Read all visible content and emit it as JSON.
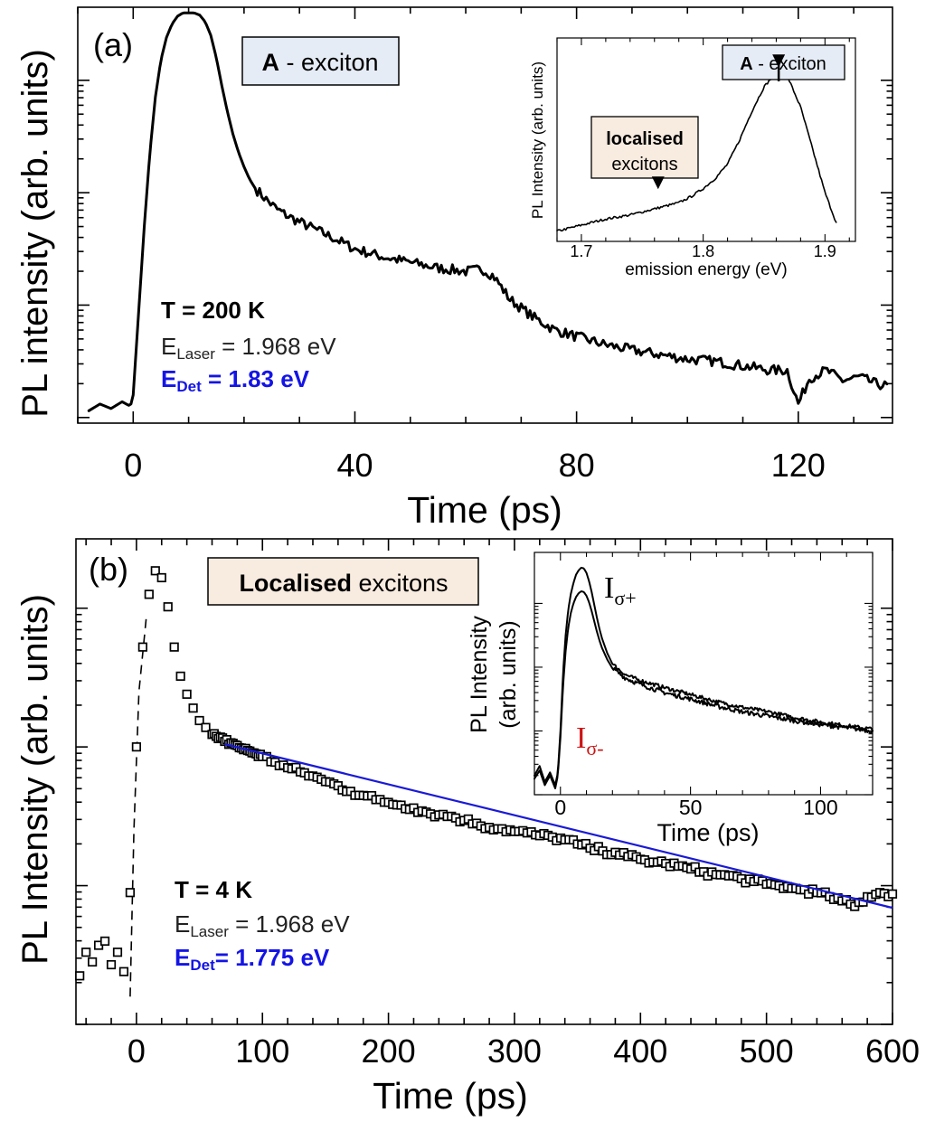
{
  "chart_data": [
    {
      "id": "a",
      "type": "line",
      "panel_label": "(a)",
      "xlabel": "Time (ps)",
      "ylabel": "PL intensity (arb. units)",
      "xlim": [
        -10,
        137
      ],
      "yscale": "log",
      "ylim_decades": [
        0,
        3.6
      ],
      "xticks": [
        0,
        40,
        80,
        120
      ],
      "xtick_labels": [
        "0",
        "40",
        "80",
        "120"
      ],
      "legend_box": {
        "bold": "A",
        "rest": " - exciton",
        "fill": "#e6ecf5"
      },
      "annotations": {
        "temperature": "T = 200 K",
        "laser_prefix": "E",
        "laser_sub": "Laser",
        "laser_value": " = 1.968 eV",
        "det_prefix": "E",
        "det_sub": "Det",
        "det_value": " = 1.83 eV",
        "det_color": "#1414e6"
      },
      "series": [
        {
          "name": "A-exciton PL",
          "color": "#000000",
          "x": [
            -8,
            -6,
            -4,
            -2,
            -0.5,
            0,
            1,
            2,
            3,
            4,
            5,
            6,
            7,
            8,
            9,
            10,
            11,
            12,
            13,
            14,
            15,
            16,
            17,
            18,
            19,
            20,
            21,
            22,
            24,
            26,
            28,
            30,
            33,
            36,
            40,
            45,
            50,
            55,
            60,
            63,
            65,
            68,
            72,
            76,
            80,
            85,
            90,
            95,
            100,
            105,
            110,
            115,
            118,
            120,
            122,
            125,
            128,
            131,
            134,
            136
          ],
          "y": [
            0.06,
            0.12,
            0.08,
            0.14,
            0.1,
            0.2,
            0.95,
            1.7,
            2.35,
            2.85,
            3.18,
            3.38,
            3.5,
            3.57,
            3.6,
            3.6,
            3.6,
            3.58,
            3.52,
            3.4,
            3.2,
            2.95,
            2.72,
            2.52,
            2.36,
            2.23,
            2.12,
            2.04,
            1.94,
            1.85,
            1.79,
            1.74,
            1.67,
            1.6,
            1.5,
            1.43,
            1.38,
            1.33,
            1.3,
            1.32,
            1.26,
            1.05,
            0.9,
            0.78,
            0.72,
            0.65,
            0.6,
            0.56,
            0.52,
            0.5,
            0.46,
            0.42,
            0.42,
            0.12,
            0.35,
            0.42,
            0.33,
            0.36,
            0.3,
            0.28
          ]
        }
      ]
    },
    {
      "id": "a-inset",
      "type": "line",
      "xlabel": "emission energy (eV)",
      "ylabel": "PL Intensity (arb. units)",
      "xlim": [
        1.68,
        1.925
      ],
      "ylim": [
        0,
        1
      ],
      "xticks": [
        1.7,
        1.8,
        1.9
      ],
      "xtick_labels": [
        "1.7",
        "1.8",
        "1.9"
      ],
      "labels": {
        "a_bold": "A",
        "a_rest": " - exciton",
        "a_fill": "#e6ecf5",
        "loc_bold": "localised",
        "loc_rest": "excitons",
        "loc_fill": "#f8ebdf"
      },
      "arrows": [
        {
          "x": 1.862,
          "y": 0.83
        },
        {
          "x": 1.763,
          "y": 0.23
        }
      ],
      "series": [
        {
          "name": "PL spectrum",
          "color": "#000000",
          "x": [
            1.68,
            1.7,
            1.72,
            1.74,
            1.76,
            1.78,
            1.79,
            1.8,
            1.81,
            1.82,
            1.83,
            1.84,
            1.85,
            1.86,
            1.865,
            1.87,
            1.88,
            1.89,
            1.9,
            1.91
          ],
          "y": [
            0.05,
            0.08,
            0.11,
            0.13,
            0.16,
            0.19,
            0.22,
            0.26,
            0.31,
            0.38,
            0.5,
            0.64,
            0.76,
            0.83,
            0.84,
            0.8,
            0.66,
            0.45,
            0.24,
            0.08
          ]
        }
      ]
    },
    {
      "id": "b",
      "type": "scatter",
      "panel_label": "(b)",
      "xlabel": "Time (ps)",
      "ylabel": "PL Intensity (arb. units)",
      "xlim": [
        -48,
        600
      ],
      "yscale": "log",
      "ylim_decades": [
        0,
        3.5
      ],
      "xticks": [
        0,
        100,
        200,
        300,
        400,
        500,
        600
      ],
      "xtick_labels": [
        "0",
        "100",
        "200",
        "300",
        "400",
        "500",
        "600"
      ],
      "legend_box": {
        "bold": "Localised",
        "rest": " excitons",
        "fill": "#f8ebdf"
      },
      "annotations": {
        "temperature": "T = 4 K",
        "laser_prefix": "E",
        "laser_sub": "Laser",
        "laser_value": " = 1.968 eV",
        "det_prefix": "E",
        "det_sub": "Det",
        "det_value": "= 1.775 eV",
        "det_color": "#1414e6"
      },
      "series": [
        {
          "name": "PL data (squares)",
          "color": "#000000",
          "x": [
            -45,
            -40,
            -35,
            -30,
            -25,
            -20,
            -15,
            -10,
            -5,
            0,
            5,
            10,
            15,
            20,
            25,
            30,
            35,
            40,
            45,
            50,
            55,
            60,
            65,
            70,
            75,
            80,
            85,
            90,
            95,
            100,
            110,
            120,
            130,
            140,
            150,
            160,
            170,
            180,
            190,
            200,
            210,
            220,
            230,
            240,
            250,
            260,
            270,
            280,
            290,
            300,
            310,
            320,
            330,
            340,
            350,
            360,
            370,
            380,
            390,
            400,
            410,
            420,
            430,
            440,
            450,
            460,
            470,
            480,
            490,
            500,
            510,
            520,
            530,
            540,
            550,
            560,
            570,
            580,
            590,
            600
          ],
          "y": [
            0.35,
            0.52,
            0.45,
            0.57,
            0.6,
            0.43,
            0.52,
            0.38,
            0.95,
            2.0,
            2.72,
            3.1,
            3.27,
            3.22,
            3.01,
            2.72,
            2.51,
            2.38,
            2.28,
            2.19,
            2.14,
            2.09,
            2.06,
            2.04,
            2.03,
            2.01,
            1.98,
            1.97,
            1.95,
            1.93,
            1.89,
            1.85,
            1.82,
            1.79,
            1.75,
            1.72,
            1.68,
            1.65,
            1.62,
            1.6,
            1.58,
            1.56,
            1.53,
            1.51,
            1.5,
            1.47,
            1.45,
            1.42,
            1.41,
            1.39,
            1.38,
            1.36,
            1.35,
            1.33,
            1.3,
            1.27,
            1.25,
            1.24,
            1.21,
            1.19,
            1.17,
            1.16,
            1.14,
            1.12,
            1.1,
            1.08,
            1.07,
            1.05,
            1.03,
            1.01,
            1.0,
            0.98,
            0.97,
            0.95,
            0.92,
            0.89,
            0.85,
            0.92,
            0.95,
            0.94
          ]
        },
        {
          "name": "Exponential fit",
          "color": "#1a1ad6",
          "x": [
            70,
            600
          ],
          "y": [
            2.02,
            0.84
          ]
        }
      ]
    },
    {
      "id": "b-inset",
      "type": "line",
      "xlabel": "Time (ps)",
      "ylabel": "PL Intensity (arb. units)",
      "xlim": [
        -10,
        120
      ],
      "yscale": "log",
      "ylim_decades": [
        0,
        3.6
      ],
      "xticks": [
        0,
        50,
        100
      ],
      "xtick_labels": [
        "0",
        "50",
        "100"
      ],
      "labels": {
        "plus_main": "I",
        "plus_sub": "σ+",
        "minus_main": "I",
        "minus_sub": "σ-",
        "minus_color": "#cc1414"
      },
      "series": [
        {
          "name": "I sigma+",
          "color": "#000000",
          "x": [
            -10,
            -8,
            -6,
            -4,
            -2,
            -1,
            0,
            1,
            2,
            3,
            4,
            5,
            6,
            7,
            8,
            9,
            10,
            11,
            12,
            13,
            14,
            15,
            16,
            18,
            20,
            25,
            30,
            40,
            50,
            60,
            70,
            80,
            90,
            100,
            110,
            120
          ],
          "y": [
            0.3,
            0.45,
            0.2,
            0.35,
            0.15,
            0.35,
            1.0,
            1.9,
            2.5,
            2.9,
            3.15,
            3.32,
            3.45,
            3.52,
            3.56,
            3.55,
            3.48,
            3.35,
            3.18,
            2.98,
            2.78,
            2.6,
            2.45,
            2.22,
            2.05,
            1.88,
            1.8,
            1.68,
            1.57,
            1.46,
            1.37,
            1.3,
            1.21,
            1.14,
            1.08,
            1.03
          ]
        },
        {
          "name": "I sigma-",
          "color": "#cc1414",
          "x": [
            -10,
            -8,
            -6,
            -4,
            -2,
            -1,
            0,
            1,
            2,
            3,
            4,
            5,
            6,
            7,
            8,
            9,
            10,
            11,
            12,
            13,
            14,
            15,
            16,
            18,
            20,
            25,
            30,
            40,
            50,
            60,
            70,
            80,
            90,
            100,
            110,
            120
          ],
          "y": [
            0.25,
            0.38,
            0.15,
            0.3,
            0.1,
            0.3,
            0.9,
            1.7,
            2.25,
            2.62,
            2.85,
            3.0,
            3.1,
            3.16,
            3.19,
            3.18,
            3.12,
            3.02,
            2.88,
            2.72,
            2.56,
            2.42,
            2.3,
            2.12,
            1.98,
            1.83,
            1.74,
            1.6,
            1.5,
            1.39,
            1.3,
            1.23,
            1.16,
            1.1,
            1.05,
            1.0
          ]
        }
      ]
    }
  ]
}
